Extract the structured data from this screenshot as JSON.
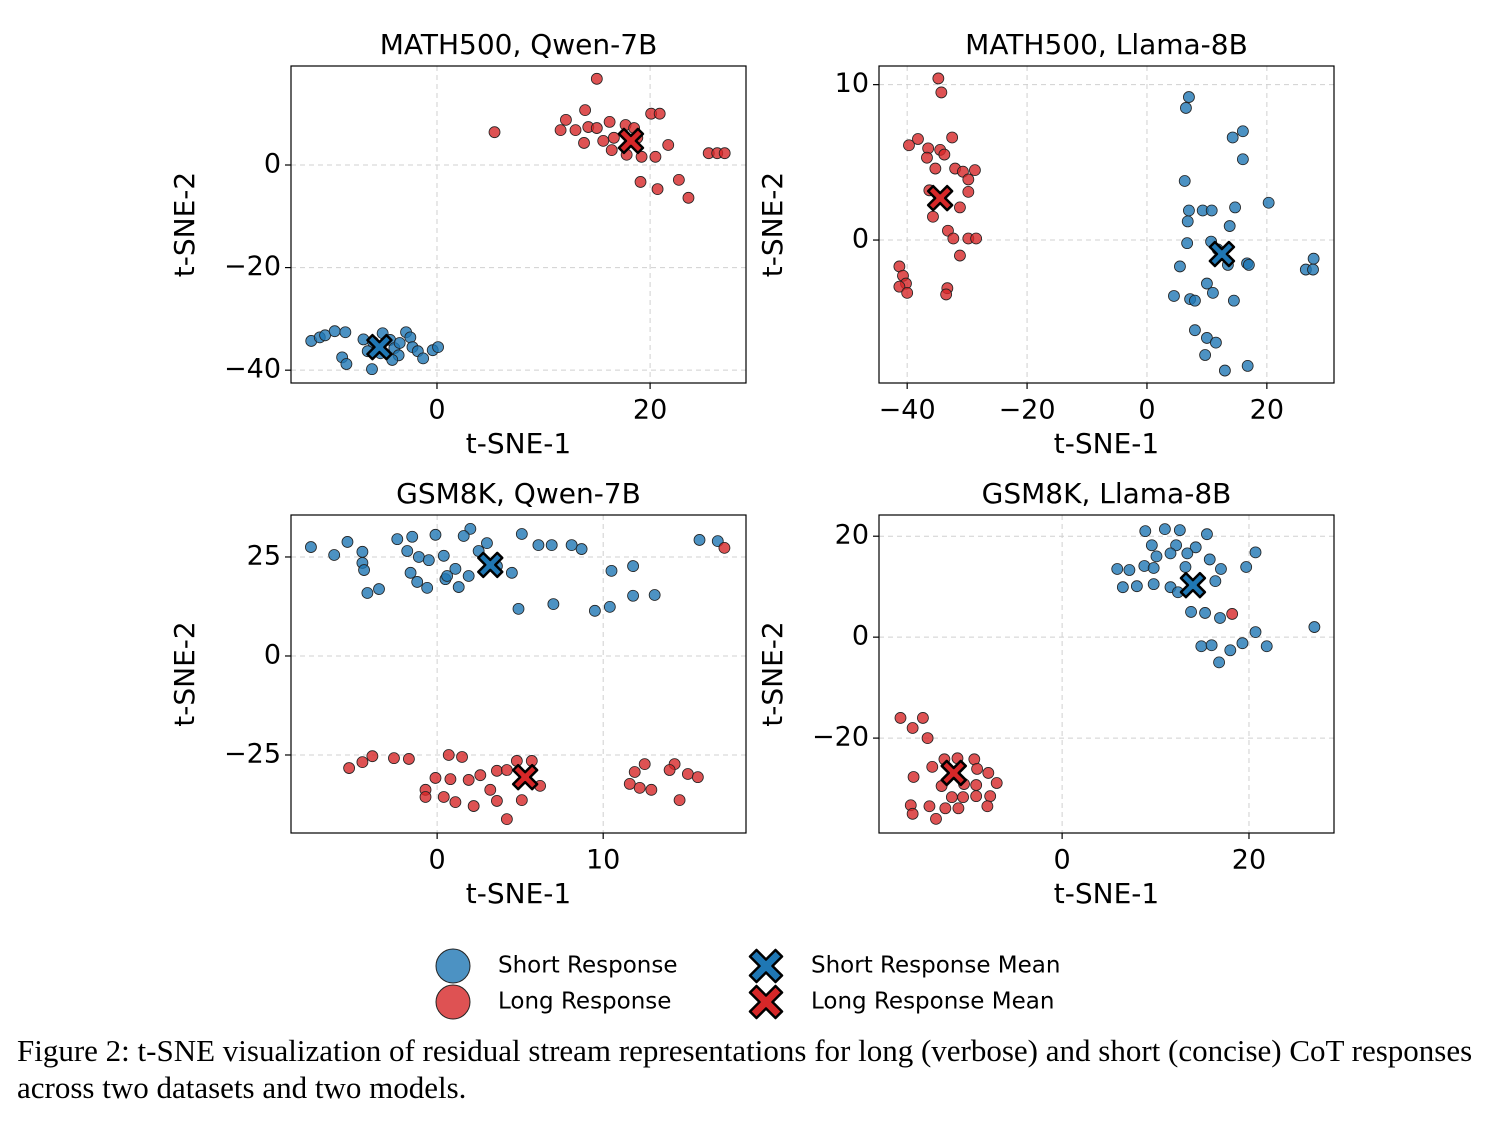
{
  "chart_data": [
    {
      "type": "scatter",
      "title": "MATH500, Qwen-7B",
      "x_label": "t-SNE-1",
      "y_label": "t-SNE-2",
      "xlim": [
        -13.7,
        29.0
      ],
      "ylim": [
        -42.5,
        19.3
      ],
      "xticks": [
        0,
        20
      ],
      "yticks": [
        {
          "value": -40,
          "label": "−40"
        },
        {
          "value": -20,
          "label": "−20"
        },
        0
      ],
      "grid": true,
      "series": [
        {
          "name": "Short Response",
          "color": "#1f77b4",
          "marker": "o",
          "x": [
            -11.8,
            -11.0,
            -10.5,
            -9.6,
            -8.6,
            -8.9,
            -8.5,
            -6.9,
            -6.5,
            -6.0,
            -6.1,
            -5.1,
            -4.4,
            -4.0,
            -3.6,
            -3.5,
            -2.9,
            -2.5,
            -2.3,
            -1.8,
            -1.3,
            -0.4,
            0.1,
            -4.2,
            -5.3
          ],
          "y": [
            -34.3,
            -33.6,
            -33.2,
            -32.4,
            -32.6,
            -37.5,
            -38.8,
            -34.0,
            -36.3,
            -34.5,
            -39.8,
            -32.8,
            -34.1,
            -35.7,
            -37.1,
            -34.7,
            -32.6,
            -33.6,
            -35.5,
            -36.3,
            -37.7,
            -36.1,
            -35.5,
            -38.0,
            -36.7
          ]
        },
        {
          "name": "Long Response",
          "color": "#d62728",
          "marker": "o",
          "x": [
            15.0,
            13.9,
            12.1,
            11.6,
            13.0,
            14.2,
            15.0,
            16.2,
            17.7,
            18.5,
            20.1,
            20.9,
            21.7,
            18.8,
            16.6,
            13.8,
            17.8,
            19.2,
            20.5,
            19.1,
            20.7,
            22.7,
            23.6,
            25.5,
            26.3,
            27.0,
            5.4,
            15.6,
            16.4
          ],
          "y": [
            16.8,
            10.7,
            8.8,
            6.8,
            6.8,
            7.4,
            7.2,
            8.4,
            7.8,
            7.2,
            10.0,
            10.0,
            3.9,
            5.3,
            5.3,
            4.3,
            2.0,
            1.6,
            1.6,
            -3.3,
            -4.7,
            -2.9,
            -6.4,
            2.3,
            2.3,
            2.3,
            6.4,
            4.7,
            2.9
          ]
        },
        {
          "name": "Short Response Mean",
          "color": "#1f77b4",
          "marker": "X",
          "x": [
            -5.4
          ],
          "y": [
            -35.5
          ]
        },
        {
          "name": "Long Response Mean",
          "color": "#d62728",
          "marker": "X",
          "x": [
            18.2
          ],
          "y": [
            4.7
          ]
        }
      ]
    },
    {
      "type": "scatter",
      "title": "MATH500, Llama-8B",
      "x_label": "t-SNE-1",
      "y_label": "t-SNE-2",
      "xlim": [
        -44.7,
        31.2
      ],
      "ylim": [
        -9.2,
        11.2
      ],
      "xticks": [
        {
          "value": -40,
          "label": "−40"
        },
        {
          "value": -20,
          "label": "−20"
        },
        0,
        20
      ],
      "yticks": [
        0,
        10
      ],
      "grid": true,
      "series": [
        {
          "name": "Short Response",
          "color": "#1f77b4",
          "marker": "o",
          "x": [
            7.0,
            6.5,
            6.3,
            7.0,
            6.8,
            6.7,
            9.3,
            10.8,
            14.7,
            14.3,
            16.0,
            16.0,
            20.3,
            13.8,
            10.7,
            11.8,
            13.5,
            16.7,
            17.0,
            5.5,
            10.0,
            11.0,
            4.5,
            7.2,
            8.0,
            14.5,
            8.0,
            10.0,
            11.5,
            9.7,
            16.8,
            13.0,
            27.8,
            26.5,
            27.7
          ],
          "y": [
            9.2,
            8.5,
            3.8,
            1.9,
            1.2,
            -0.2,
            1.9,
            1.9,
            2.1,
            6.6,
            7.0,
            5.2,
            2.4,
            0.9,
            -0.1,
            -0.6,
            -1.6,
            -1.5,
            -1.6,
            -1.7,
            -2.8,
            -3.4,
            -3.6,
            -3.8,
            -3.9,
            -3.9,
            -5.8,
            -6.3,
            -6.6,
            -7.4,
            -8.1,
            -8.4,
            -1.2,
            -1.9,
            -1.9
          ]
        },
        {
          "name": "Long Response",
          "color": "#d62728",
          "marker": "o",
          "x": [
            -34.8,
            -34.3,
            -38.2,
            -39.7,
            -36.5,
            -34.5,
            -32.5,
            -33.8,
            -36.7,
            -35.3,
            -32.0,
            -30.7,
            -28.7,
            -29.8,
            -36.3,
            -29.8,
            -31.2,
            -35.7,
            -33.2,
            -32.3,
            -29.8,
            -28.5,
            -31.2,
            -41.3,
            -40.7,
            -40.2,
            -41.3,
            -40.0,
            -33.3,
            -33.5
          ],
          "y": [
            10.4,
            9.5,
            6.5,
            6.1,
            5.9,
            5.8,
            6.6,
            5.5,
            5.3,
            4.6,
            4.6,
            4.4,
            4.5,
            3.9,
            3.2,
            3.1,
            2.1,
            1.5,
            0.6,
            0.1,
            0.1,
            0.1,
            -1.0,
            -1.7,
            -2.3,
            -2.8,
            -3.0,
            -3.4,
            -3.1,
            -3.5
          ]
        },
        {
          "name": "Short Response Mean",
          "color": "#1f77b4",
          "marker": "X",
          "x": [
            12.5
          ],
          "y": [
            -0.9
          ]
        },
        {
          "name": "Long Response Mean",
          "color": "#d62728",
          "marker": "X",
          "x": [
            -34.5
          ],
          "y": [
            2.7
          ]
        }
      ]
    },
    {
      "type": "scatter",
      "title": "GSM8K, Qwen-7B",
      "x_label": "t-SNE-1",
      "y_label": "t-SNE-2",
      "xlim": [
        -8.8,
        18.6
      ],
      "ylim": [
        -44.7,
        35.6
      ],
      "xticks": [
        0,
        10
      ],
      "yticks": [
        {
          "value": -25,
          "label": "−25"
        },
        0,
        25
      ],
      "grid": true,
      "series": [
        {
          "name": "Short Response",
          "color": "#1f77b4",
          "marker": "o",
          "x": [
            -7.6,
            -5.4,
            -6.2,
            -4.5,
            -4.5,
            -4.4,
            -4.2,
            -3.5,
            -2.4,
            -1.5,
            -1.8,
            -1.1,
            -0.5,
            -0.1,
            0.4,
            2.0,
            1.6,
            2.5,
            3.0,
            1.1,
            0.5,
            -1.6,
            -1.2,
            -0.6,
            0.6,
            1.3,
            1.9,
            3.6,
            4.5,
            5.1,
            6.1,
            6.9,
            8.1,
            8.7,
            4.9,
            7.0,
            9.5,
            10.4,
            10.5,
            11.8,
            11.8,
            13.1,
            15.8,
            16.9
          ],
          "y": [
            27.5,
            28.8,
            25.5,
            26.3,
            23.5,
            21.7,
            15.9,
            16.9,
            29.5,
            30.1,
            26.5,
            25.0,
            24.2,
            30.6,
            25.3,
            32.1,
            30.3,
            26.5,
            28.5,
            22.0,
            19.4,
            21.0,
            18.7,
            17.2,
            20.2,
            17.4,
            20.2,
            22.7,
            21.0,
            30.8,
            28.0,
            28.0,
            28.0,
            27.0,
            11.9,
            13.1,
            11.4,
            12.4,
            21.5,
            22.7,
            15.2,
            15.4,
            29.3,
            29.0
          ]
        },
        {
          "name": "Long Response",
          "color": "#d62728",
          "marker": "o",
          "x": [
            -5.3,
            -4.5,
            -3.9,
            -2.6,
            -1.7,
            -0.7,
            0.7,
            1.5,
            -0.1,
            0.8,
            1.9,
            2.6,
            3.2,
            3.6,
            4.2,
            4.8,
            5.7,
            6.2,
            5.1,
            3.6,
            0.4,
            1.1,
            2.2,
            4.2,
            -0.7,
            11.6,
            12.2,
            12.9,
            11.9,
            12.5,
            14.3,
            14.0,
            15.1,
            15.7,
            14.6,
            17.3
          ],
          "y": [
            -28.3,
            -26.8,
            -25.3,
            -25.8,
            -26.0,
            -33.8,
            -25.0,
            -25.5,
            -30.8,
            -31.1,
            -31.3,
            -30.1,
            -33.8,
            -29.0,
            -28.8,
            -26.5,
            -26.5,
            -32.8,
            -36.4,
            -36.6,
            -35.6,
            -36.9,
            -37.9,
            -41.2,
            -35.6,
            -32.3,
            -33.3,
            -33.8,
            -29.3,
            -27.3,
            -27.3,
            -28.8,
            -29.8,
            -30.6,
            -36.4,
            27.3
          ]
        },
        {
          "name": "Short Response Mean",
          "color": "#1f77b4",
          "marker": "X",
          "x": [
            3.2
          ],
          "y": [
            23.0
          ]
        },
        {
          "name": "Long Response Mean",
          "color": "#d62728",
          "marker": "X",
          "x": [
            5.3
          ],
          "y": [
            -30.6
          ]
        }
      ]
    },
    {
      "type": "scatter",
      "title": "GSM8K, Llama-8B",
      "x_label": "t-SNE-1",
      "y_label": "t-SNE-2",
      "xlim": [
        -19.6,
        29.1
      ],
      "ylim": [
        -38.8,
        24.2
      ],
      "xticks": [
        0,
        20
      ],
      "yticks": [
        {
          "value": -20,
          "label": "−20"
        },
        0,
        20
      ],
      "grid": true,
      "series": [
        {
          "name": "Short Response",
          "color": "#1f77b4",
          "marker": "o",
          "x": [
            8.9,
            11.0,
            12.6,
            15.5,
            9.6,
            12.2,
            14.3,
            10.1,
            11.6,
            13.4,
            15.8,
            20.7,
            19.7,
            5.9,
            7.2,
            8.8,
            9.8,
            13.2,
            17.0,
            6.5,
            8.0,
            9.8,
            11.6,
            12.4,
            16.4,
            13.8,
            15.3,
            16.9,
            14.9,
            16.0,
            16.8,
            18.0,
            19.3,
            20.7,
            21.9,
            27.0
          ],
          "y": [
            21.0,
            21.4,
            21.2,
            20.4,
            18.2,
            18.2,
            17.8,
            16.0,
            16.6,
            16.6,
            15.4,
            16.8,
            13.9,
            13.5,
            13.3,
            14.1,
            13.7,
            13.9,
            13.5,
            9.9,
            10.1,
            10.5,
            9.9,
            8.9,
            11.1,
            5.0,
            4.8,
            3.8,
            -1.8,
            -1.6,
            -5.0,
            -2.6,
            -1.2,
            1.0,
            -1.8,
            2.0
          ]
        },
        {
          "name": "Long Response",
          "color": "#d62728",
          "marker": "o",
          "x": [
            -17.3,
            -16.0,
            -14.9,
            -14.4,
            -15.9,
            -16.2,
            -16.0,
            -14.2,
            -13.5,
            -12.9,
            -13.9,
            -12.6,
            -11.2,
            -9.4,
            -9.1,
            -7.9,
            -7.0,
            -7.7,
            -8.0,
            -10.6,
            -9.2,
            -11.8,
            -12.5,
            -11.1,
            -10.5,
            -9.2,
            18.2
          ],
          "y": [
            -16.0,
            -18.0,
            -16.0,
            -20.0,
            -27.7,
            -33.3,
            -35.0,
            -33.5,
            -36.0,
            -29.5,
            -25.7,
            -24.2,
            -24.0,
            -24.2,
            -26.1,
            -26.9,
            -28.9,
            -31.5,
            -33.5,
            -31.7,
            -31.5,
            -31.7,
            -33.9,
            -33.9,
            -29.1,
            -29.3,
            4.6
          ]
        },
        {
          "name": "Short Response Mean",
          "color": "#1f77b4",
          "marker": "X",
          "x": [
            14.0
          ],
          "y": [
            10.3
          ]
        },
        {
          "name": "Long Response Mean",
          "color": "#d62728",
          "marker": "X",
          "x": [
            -11.6
          ],
          "y": [
            -26.9
          ]
        }
      ]
    }
  ],
  "caption": "Figure 2: t-SNE visualization of residual stream representations for long (verbose) and short (concise) CoT responses across two datasets and two models."
}
